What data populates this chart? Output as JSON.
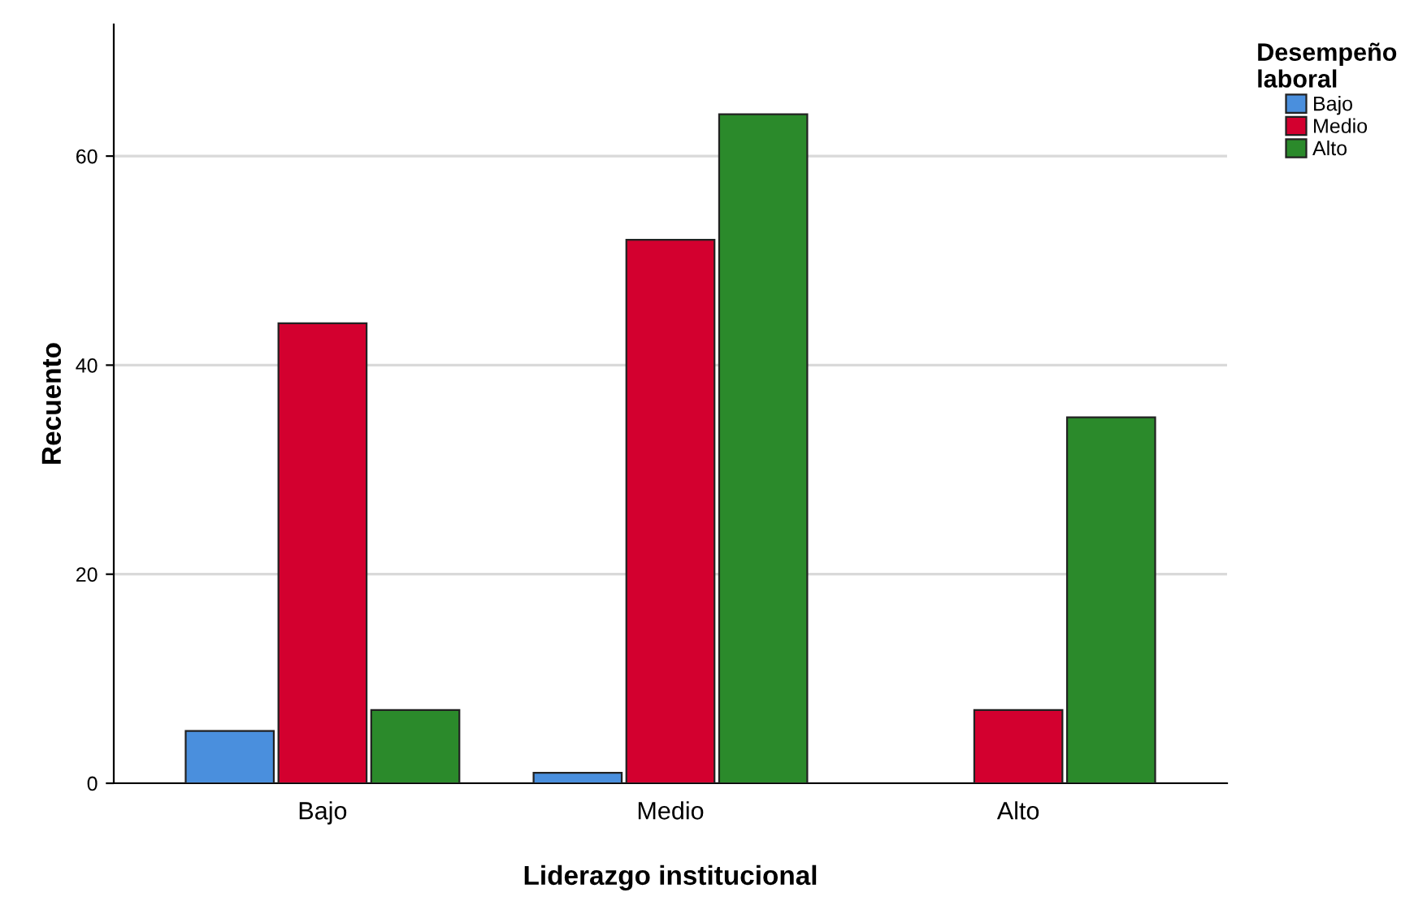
{
  "chart_data": {
    "type": "bar",
    "xlabel": "Liderazgo institucional",
    "ylabel": "Recuento",
    "legend_title": "Desempeño\nlaboral",
    "categories": [
      "Bajo",
      "Medio",
      "Alto"
    ],
    "series": [
      {
        "name": "Bajo",
        "color": "#4a8fdd",
        "values": [
          5,
          1,
          null
        ]
      },
      {
        "name": "Medio",
        "color": "#d3002f",
        "values": [
          44,
          52,
          7
        ]
      },
      {
        "name": "Alto",
        "color": "#2b8a2b",
        "values": [
          7,
          64,
          35
        ]
      }
    ],
    "ylim": [
      0,
      72.6
    ],
    "yticks": [
      0,
      20,
      40,
      60
    ],
    "grid": "y",
    "legend": "top right"
  }
}
